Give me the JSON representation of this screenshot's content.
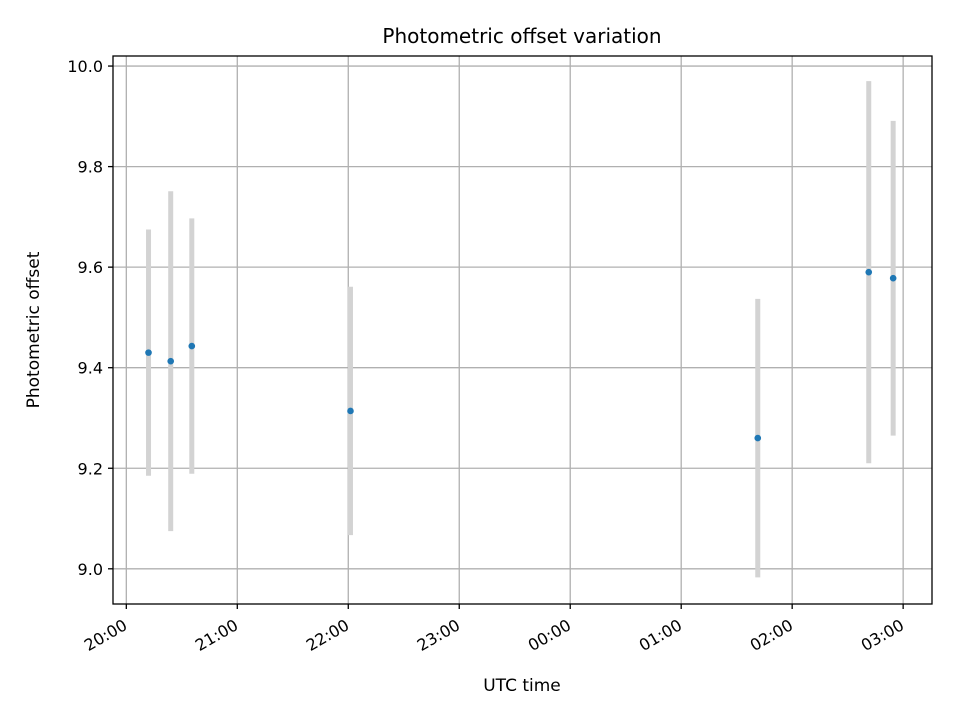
{
  "chart_data": {
    "type": "scatter",
    "title": "Photometric offset variation",
    "xlabel": "UTC time",
    "ylabel": "Photometric offset",
    "x_ticks": [
      "20:00",
      "21:00",
      "22:00",
      "23:00",
      "00:00",
      "01:00",
      "02:00",
      "03:00"
    ],
    "x_tick_hours": [
      20,
      21,
      22,
      23,
      24,
      25,
      26,
      27
    ],
    "xlim_hours": [
      19.88,
      27.26
    ],
    "y_ticks": [
      "9.0",
      "9.2",
      "9.4",
      "9.6",
      "9.8",
      "10.0"
    ],
    "y_tick_values": [
      9.0,
      9.2,
      9.4,
      9.6,
      9.8,
      10.0
    ],
    "ylim": [
      8.93,
      10.02
    ],
    "grid": true,
    "marker_color": "#1f77b4",
    "errorbar_color": "#d3d3d3",
    "points": [
      {
        "time": "20:12",
        "hour": 20.2,
        "value": 9.43,
        "error": 0.245
      },
      {
        "time": "20:24",
        "hour": 20.4,
        "value": 9.413,
        "error": 0.338
      },
      {
        "time": "20:35",
        "hour": 20.59,
        "value": 9.443,
        "error": 0.254
      },
      {
        "time": "22:01",
        "hour": 22.02,
        "value": 9.314,
        "error": 0.247
      },
      {
        "time": "01:41",
        "hour": 25.69,
        "value": 9.26,
        "error": 0.277
      },
      {
        "time": "02:41",
        "hour": 26.69,
        "value": 9.59,
        "error": 0.38
      },
      {
        "time": "02:55",
        "hour": 26.91,
        "value": 9.578,
        "error": 0.313
      }
    ]
  }
}
